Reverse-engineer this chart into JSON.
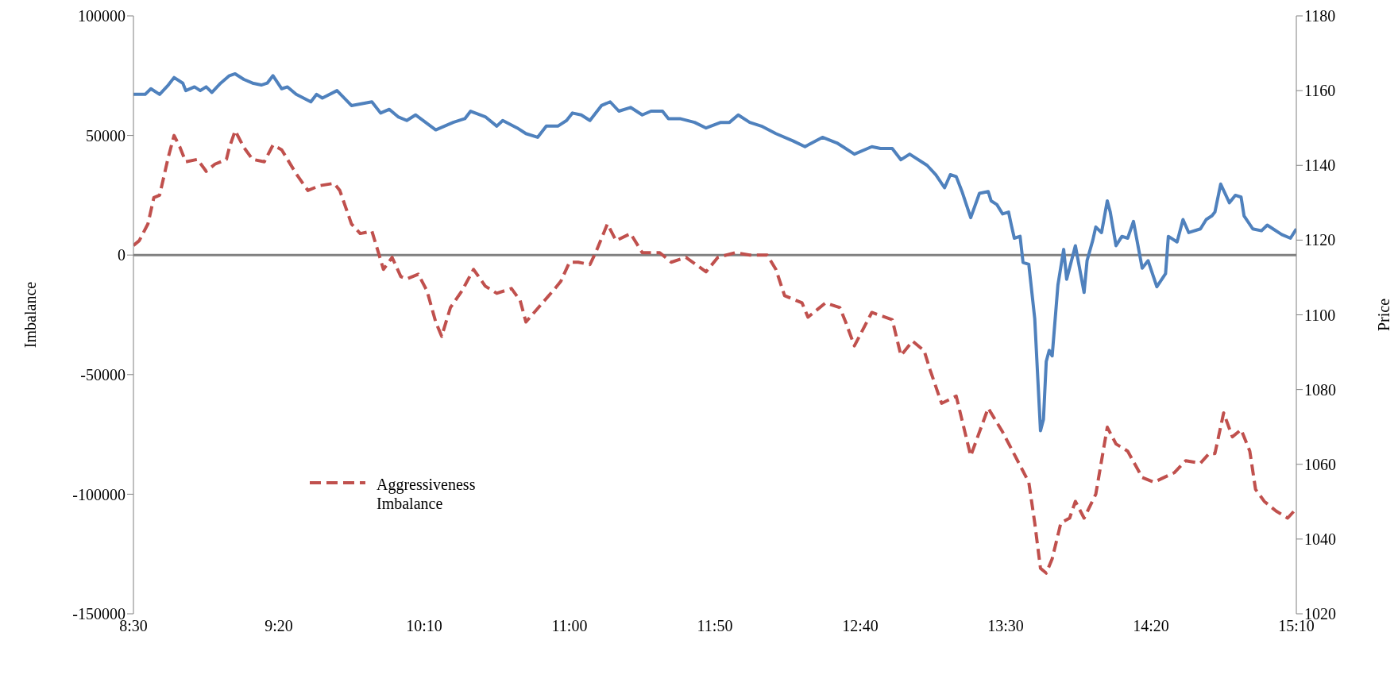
{
  "chart_data": {
    "type": "line",
    "xlabel": null,
    "ylabel": "Imbalance",
    "y2label": "Price",
    "xlim": [
      8.5,
      15.1667
    ],
    "xticks": [
      {
        "value": 8.5,
        "label": "8:30"
      },
      {
        "value": 9.3333,
        "label": "9:20"
      },
      {
        "value": 10.1667,
        "label": "10:10"
      },
      {
        "value": 11.0,
        "label": "11:00"
      },
      {
        "value": 11.8333,
        "label": "11:50"
      },
      {
        "value": 12.6667,
        "label": "12:40"
      },
      {
        "value": 13.5,
        "label": "13:30"
      },
      {
        "value": 14.3333,
        "label": "14:20"
      },
      {
        "value": 15.1667,
        "label": "15:10"
      }
    ],
    "ylim": [
      -150000,
      100000
    ],
    "yticks": [
      -150000,
      -100000,
      -50000,
      0,
      50000,
      100000
    ],
    "y2lim": [
      1020,
      1180
    ],
    "y2ticks": [
      1020,
      1040,
      1060,
      1080,
      1100,
      1120,
      1140,
      1160,
      1180
    ],
    "legend": "bottom left",
    "marker": "none",
    "ref_lines": [
      {
        "axis": "y",
        "value": 0,
        "color": "#808080"
      }
    ],
    "series": [
      {
        "name": "Aggressiveness Imbalance",
        "color": "#c0504d",
        "line_style": "dashed",
        "axis": "y",
        "x": [
          8.5,
          8.533,
          8.583,
          8.617,
          8.65,
          8.7,
          8.733,
          8.767,
          8.8,
          8.867,
          8.917,
          8.967,
          9.033,
          9.05,
          9.083,
          9.133,
          9.183,
          9.25,
          9.3,
          9.35,
          9.383,
          9.433,
          9.5,
          9.567,
          9.65,
          9.683,
          9.75,
          9.8,
          9.867,
          9.917,
          9.933,
          9.983,
          10.033,
          10.067,
          10.133,
          10.183,
          10.233,
          10.267,
          10.317,
          10.383,
          10.45,
          10.517,
          10.583,
          10.667,
          10.717,
          10.75,
          10.833,
          10.917,
          10.95,
          11.0,
          11.05,
          11.117,
          11.15,
          11.217,
          11.267,
          11.35,
          11.417,
          11.517,
          11.583,
          11.667,
          11.783,
          11.85,
          11.95,
          12.033,
          12.133,
          12.183,
          12.233,
          12.333,
          12.367,
          12.467,
          12.55,
          12.583,
          12.633,
          12.733,
          12.85,
          12.9,
          12.967,
          13.033,
          13.067,
          13.133,
          13.217,
          13.25,
          13.3,
          13.4,
          13.483,
          13.533,
          13.583,
          13.633,
          13.667,
          13.7,
          13.733,
          13.767,
          13.817,
          13.867,
          13.9,
          13.95,
          14.017,
          14.05,
          14.083,
          14.133,
          14.2,
          14.283,
          14.35,
          14.467,
          14.533,
          14.617,
          14.667,
          14.7,
          14.75,
          14.8,
          14.85,
          14.9,
          14.933,
          14.983,
          15.05,
          15.117,
          15.1667
        ],
        "values": [
          4000,
          6000,
          13000,
          24000,
          25000,
          41000,
          50000,
          45000,
          39000,
          40000,
          35000,
          38000,
          40000,
          45000,
          52000,
          45000,
          40000,
          39000,
          46000,
          44000,
          40000,
          34000,
          27000,
          29000,
          30000,
          27000,
          13000,
          9000,
          10000,
          -2000,
          -6000,
          -1000,
          -9000,
          -10000,
          -8000,
          -15000,
          -28000,
          -34000,
          -22000,
          -15000,
          -6000,
          -13000,
          -16000,
          -14000,
          -19000,
          -28000,
          -21000,
          -14000,
          -11000,
          -3000,
          -3000,
          -4000,
          1000,
          13000,
          6000,
          9000,
          1000,
          1000,
          -3000,
          -1000,
          -7000,
          -1000,
          1000,
          0,
          0,
          -6000,
          -17000,
          -20000,
          -26000,
          -20000,
          -22000,
          -28000,
          -38000,
          -24000,
          -27000,
          -42000,
          -36000,
          -40000,
          -48000,
          -62000,
          -59000,
          -69000,
          -84000,
          -64000,
          -74000,
          -81000,
          -88000,
          -95000,
          -112000,
          -131000,
          -133000,
          -127000,
          -112000,
          -110000,
          -103000,
          -110000,
          -100000,
          -86000,
          -72000,
          -79000,
          -82000,
          -93000,
          -95000,
          -91000,
          -86000,
          -87000,
          -83000,
          -83000,
          -66000,
          -76000,
          -73000,
          -82000,
          -98000,
          -103000,
          -107000,
          -110000,
          -106000
        ]
      },
      {
        "color": "#4f81bd",
        "line_style": "solid",
        "axis": "y2",
        "x": [
          8.5,
          8.567,
          8.6,
          8.65,
          8.7,
          8.733,
          8.783,
          8.8,
          8.85,
          8.883,
          8.917,
          8.95,
          9.0,
          9.05,
          9.083,
          9.133,
          9.183,
          9.233,
          9.267,
          9.3,
          9.35,
          9.383,
          9.433,
          9.517,
          9.55,
          9.583,
          9.667,
          9.75,
          9.867,
          9.917,
          9.967,
          10.017,
          10.067,
          10.117,
          10.233,
          10.333,
          10.4,
          10.433,
          10.517,
          10.583,
          10.617,
          10.7,
          10.75,
          10.817,
          10.867,
          10.933,
          10.983,
          11.017,
          11.067,
          11.117,
          11.183,
          11.233,
          11.283,
          11.35,
          11.417,
          11.467,
          11.533,
          11.567,
          11.633,
          11.717,
          11.783,
          11.867,
          11.917,
          11.967,
          12.033,
          12.1,
          12.183,
          12.283,
          12.35,
          12.45,
          12.533,
          12.567,
          12.633,
          12.733,
          12.783,
          12.85,
          12.9,
          12.95,
          13.05,
          13.1,
          13.15,
          13.183,
          13.217,
          13.25,
          13.3,
          13.35,
          13.4,
          13.417,
          13.45,
          13.483,
          13.517,
          13.533,
          13.55,
          13.583,
          13.6,
          13.633,
          13.667,
          13.7,
          13.717,
          13.733,
          13.75,
          13.767,
          13.8,
          13.833,
          13.85,
          13.9,
          13.95,
          13.967,
          14.0,
          14.017,
          14.05,
          14.083,
          14.1,
          14.133,
          14.167,
          14.2,
          14.233,
          14.283,
          14.317,
          14.367,
          14.417,
          14.433,
          14.483,
          14.517,
          14.55,
          14.617,
          14.65,
          14.683,
          14.7,
          14.733,
          14.783,
          14.817,
          14.85,
          14.867,
          14.917,
          14.967,
          15.0,
          15.033,
          15.083,
          15.133,
          15.1667
        ],
        "values": [
          1159,
          1159,
          1160.5,
          1159,
          1161.5,
          1163.5,
          1162,
          1160,
          1161,
          1160,
          1161,
          1159.5,
          1162,
          1164,
          1164.5,
          1163,
          1162,
          1161.5,
          1162,
          1164,
          1160.5,
          1161,
          1159,
          1157,
          1159,
          1158,
          1160,
          1156,
          1157,
          1154,
          1155,
          1153,
          1152,
          1153.5,
          1149.5,
          1151.5,
          1152.5,
          1154.5,
          1153,
          1150.5,
          1152,
          1150,
          1148.5,
          1147.5,
          1150.5,
          1150.5,
          1152,
          1154,
          1153.5,
          1152,
          1156,
          1157,
          1154.5,
          1155.5,
          1153.5,
          1154.5,
          1154.5,
          1152.5,
          1152.5,
          1151.5,
          1150,
          1151.5,
          1151.5,
          1153.5,
          1151.5,
          1150.5,
          1148.5,
          1146.5,
          1145,
          1147.5,
          1146,
          1145,
          1143,
          1145,
          1144.5,
          1144.5,
          1141.5,
          1143,
          1140,
          1137.5,
          1134,
          1137.5,
          1137,
          1133,
          1126,
          1132.5,
          1133,
          1130.5,
          1129.5,
          1127,
          1127.5,
          1124,
          1120.5,
          1121,
          1114,
          1113.5,
          1099,
          1069,
          1072,
          1087.5,
          1090.5,
          1089,
          1108,
          1117.5,
          1109.5,
          1118.5,
          1106,
          1114.5,
          1120,
          1123.5,
          1122,
          1130.5,
          1127.5,
          1118.5,
          1121,
          1120.5,
          1125,
          1112.5,
          1114.5,
          1107.5,
          1111,
          1121,
          1119.5,
          1125.5,
          1122,
          1123,
          1125.5,
          1126.5,
          1127.5,
          1135,
          1130,
          1132,
          1131.5,
          1126.5,
          1123,
          1122.5,
          1124,
          1123,
          1121.5,
          1120.5,
          1123
        ]
      }
    ]
  }
}
